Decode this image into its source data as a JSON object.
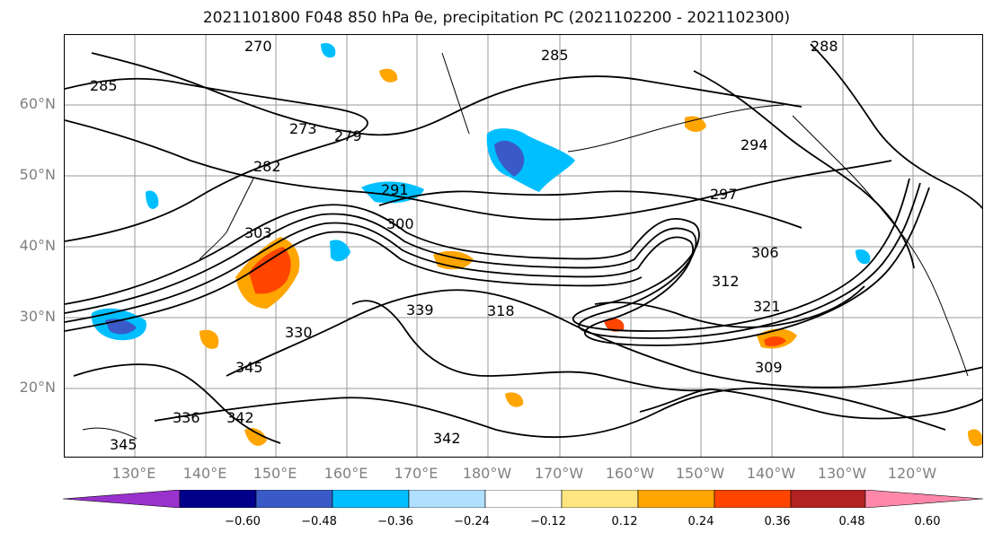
{
  "title": "2021101800 F048 850 hPa θe, precipitation PC (2021102200 - 2021102300)",
  "lat_labels": [
    "60°N",
    "50°N",
    "40°N",
    "30°N",
    "20°N"
  ],
  "lon_labels": [
    "130°E",
    "140°E",
    "150°E",
    "160°E",
    "170°E",
    "180°W",
    "170°W",
    "160°W",
    "150°W",
    "140°W",
    "130°W",
    "120°W"
  ],
  "contour_labels": [
    "285",
    "273",
    "279",
    "282",
    "291",
    "300",
    "303",
    "297",
    "306",
    "312",
    "321",
    "318",
    "330",
    "339",
    "345",
    "342",
    "336",
    "309",
    "294",
    "288",
    "285",
    "270",
    "345",
    "342"
  ],
  "colorbar": {
    "colors": [
      "#9932CC",
      "#00008B",
      "#3A5BC7",
      "#00BFFF",
      "#B0E0FF",
      "#FFFFFF",
      "#FFE680",
      "#FFA500",
      "#FF4500",
      "#B22222",
      "#FF88AA"
    ],
    "ticks": [
      "−0.60",
      "−0.48",
      "−0.36",
      "−0.24",
      "−0.12",
      "0.12",
      "0.24",
      "0.36",
      "0.48",
      "0.60"
    ]
  }
}
